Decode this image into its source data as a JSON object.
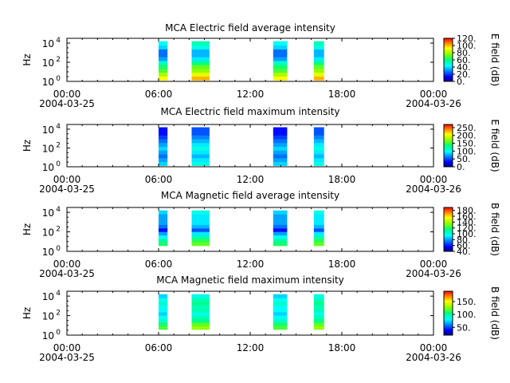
{
  "figure": {
    "xticks": [
      "00:00",
      "06:00",
      "12:00",
      "18:00",
      "00:00"
    ],
    "xtick_dates": [
      "2004-03-25",
      "",
      "",
      "",
      "2004-03-26"
    ]
  },
  "chart_data": [
    {
      "type": "heatmap",
      "title": "MCA  Electric field average intensity",
      "ylabel": "Hz",
      "yticks": [
        "10",
        "10",
        "10"
      ],
      "ytick_exponents": [
        "0",
        "2",
        "4"
      ],
      "ylim_log10": [
        0,
        4.5
      ],
      "colorbar_label": "E field (dB)",
      "colorbar_ticks": [
        "0.",
        "20.",
        "40.",
        "60.",
        "80.",
        "100.",
        "120."
      ],
      "colorbar_range": [
        0,
        120
      ],
      "time_axis": {
        "start": "2004-03-25 00:00",
        "end": "2004-03-26 00:00"
      },
      "data_intervals": [
        "06:00-06:35",
        "08:10-09:20",
        "13:30-14:25",
        "16:10-16:50"
      ]
    },
    {
      "type": "heatmap",
      "title": "MCA  Electric field maximum intensity",
      "ylabel": "Hz",
      "yticks": [
        "10",
        "10",
        "10"
      ],
      "ytick_exponents": [
        "0",
        "2",
        "4"
      ],
      "ylim_log10": [
        0,
        4.5
      ],
      "colorbar_label": "E field (dB)",
      "colorbar_ticks": [
        "0.",
        "50.",
        "100.",
        "150.",
        "200.",
        "250."
      ],
      "colorbar_range": [
        0,
        270
      ],
      "time_axis": {
        "start": "2004-03-25 00:00",
        "end": "2004-03-26 00:00"
      },
      "data_intervals": [
        "06:00-06:35",
        "08:10-09:20",
        "13:30-14:25",
        "16:10-16:50"
      ]
    },
    {
      "type": "heatmap",
      "title": "MCA  Magnetic field average intensity",
      "ylabel": "Hz",
      "yticks": [
        "10",
        "10",
        "10"
      ],
      "ytick_exponents": [
        "0",
        "2",
        "4"
      ],
      "ylim_log10": [
        0,
        4.5
      ],
      "colorbar_label": "B field (dB)",
      "colorbar_ticks": [
        "40.",
        "60.",
        "80.",
        "100.",
        "120.",
        "140.",
        "160.",
        "180."
      ],
      "colorbar_range": [
        40,
        190
      ],
      "time_axis": {
        "start": "2004-03-25 00:00",
        "end": "2004-03-26 00:00"
      },
      "data_intervals": [
        "06:00-06:35",
        "08:10-09:20",
        "13:30-14:25",
        "16:10-16:50"
      ]
    },
    {
      "type": "heatmap",
      "title": "MCA  Magnetic field maximum intensity",
      "ylabel": "Hz",
      "yticks": [
        "10",
        "10",
        "10"
      ],
      "ytick_exponents": [
        "0",
        "2",
        "4"
      ],
      "ylim_log10": [
        0,
        4.5
      ],
      "colorbar_label": "B field (dB)",
      "colorbar_ticks": [
        "50.",
        "100.",
        "150."
      ],
      "colorbar_range": [
        20,
        190
      ],
      "time_axis": {
        "start": "2004-03-25 00:00",
        "end": "2004-03-26 00:00"
      },
      "data_intervals": [
        "06:00-06:35",
        "08:10-09:20",
        "13:30-14:25",
        "16:10-16:50"
      ]
    }
  ]
}
